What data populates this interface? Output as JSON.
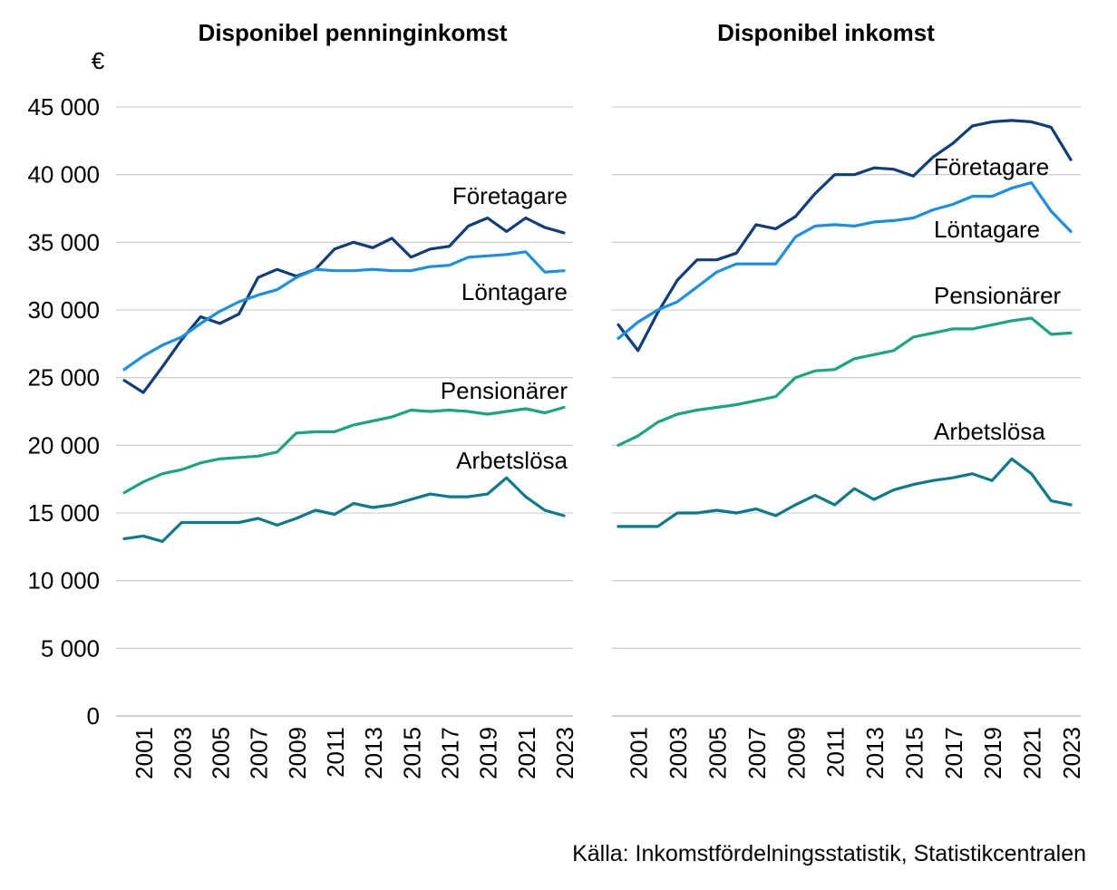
{
  "unit": "€",
  "source": "Källa: Inkomstfördelningsstatistik, Statistikcentralen",
  "chart_data": [
    {
      "type": "line",
      "title": "Disponibel penninginkomst",
      "xlabel": "",
      "ylabel": "",
      "ylim": [
        0,
        45000
      ],
      "yticks": [
        0,
        5000,
        10000,
        15000,
        20000,
        25000,
        30000,
        35000,
        40000,
        45000
      ],
      "ytick_labels": [
        "0",
        "5 000",
        "10 000",
        "15 000",
        "20 000",
        "25 000",
        "30 000",
        "35 000",
        "40 000",
        "45 000"
      ],
      "x": [
        2000,
        2001,
        2002,
        2003,
        2004,
        2005,
        2006,
        2007,
        2008,
        2009,
        2010,
        2011,
        2012,
        2013,
        2014,
        2015,
        2016,
        2017,
        2018,
        2019,
        2020,
        2021,
        2022,
        2023
      ],
      "xtick_labels": [
        "2001",
        "2003",
        "2005",
        "2007",
        "2009",
        "2011",
        "2013",
        "2015",
        "2017",
        "2019",
        "2021",
        "2023"
      ],
      "grid": true,
      "series": [
        {
          "name": "Företagare",
          "color": "#0f3d7a",
          "values": [
            24800,
            23900,
            25800,
            27800,
            29500,
            29000,
            29700,
            32400,
            33000,
            32500,
            33000,
            34500,
            35000,
            34600,
            35300,
            33900,
            34500,
            34700,
            36200,
            36800,
            35800,
            36800,
            36100,
            35700
          ]
        },
        {
          "name": "Löntagare",
          "color": "#1a8fe3",
          "values": [
            25600,
            26600,
            27400,
            28000,
            29000,
            29900,
            30600,
            31100,
            31500,
            32400,
            33000,
            32900,
            32900,
            33000,
            32900,
            32900,
            33200,
            33300,
            33900,
            34000,
            34100,
            34300,
            32800,
            32900
          ]
        },
        {
          "name": "Pensionärer",
          "color": "#1aa57f",
          "values": [
            16500,
            17300,
            17900,
            18200,
            18700,
            19000,
            19100,
            19200,
            19500,
            20900,
            21000,
            21000,
            21500,
            21800,
            22100,
            22600,
            22500,
            22600,
            22500,
            22300,
            22500,
            22700,
            22400,
            22800
          ]
        },
        {
          "name": "Arbetslösa",
          "color": "#0c7a8a",
          "values": [
            13100,
            13300,
            12900,
            14300,
            14300,
            14300,
            14300,
            14600,
            14100,
            14600,
            15200,
            14900,
            15700,
            15400,
            15600,
            16000,
            16400,
            16200,
            16200,
            16400,
            17600,
            16200,
            15200,
            14800
          ]
        }
      ]
    },
    {
      "type": "line",
      "title": "Disponibel inkomst",
      "xlabel": "",
      "ylabel": "",
      "ylim": [
        0,
        45000
      ],
      "yticks": [
        0,
        5000,
        10000,
        15000,
        20000,
        25000,
        30000,
        35000,
        40000,
        45000
      ],
      "x": [
        2000,
        2001,
        2002,
        2003,
        2004,
        2005,
        2006,
        2007,
        2008,
        2009,
        2010,
        2011,
        2012,
        2013,
        2014,
        2015,
        2016,
        2017,
        2018,
        2019,
        2020,
        2021,
        2022,
        2023
      ],
      "xtick_labels": [
        "2001",
        "2003",
        "2005",
        "2007",
        "2009",
        "2011",
        "2013",
        "2015",
        "2017",
        "2019",
        "2021",
        "2023"
      ],
      "grid": true,
      "series": [
        {
          "name": "Företagare",
          "color": "#0f3d7a",
          "values": [
            28900,
            27000,
            29800,
            32200,
            33700,
            33700,
            34200,
            36300,
            36000,
            36900,
            38600,
            40000,
            40000,
            40500,
            40400,
            39900,
            41300,
            42300,
            43600,
            43900,
            44000,
            43900,
            43500,
            41100
          ]
        },
        {
          "name": "Löntagare",
          "color": "#1a8fe3",
          "values": [
            27900,
            29100,
            30000,
            30600,
            31700,
            32800,
            33400,
            33400,
            33400,
            35400,
            36200,
            36300,
            36200,
            36500,
            36600,
            36800,
            37400,
            37800,
            38400,
            38400,
            39000,
            39400,
            37300,
            35800
          ]
        },
        {
          "name": "Pensionärer",
          "color": "#1aa57f",
          "values": [
            20000,
            20700,
            21700,
            22300,
            22600,
            22800,
            23000,
            23300,
            23600,
            25000,
            25500,
            25600,
            26400,
            26700,
            27000,
            28000,
            28300,
            28600,
            28600,
            28900,
            29200,
            29400,
            28200,
            28300
          ]
        },
        {
          "name": "Arbetslösa",
          "color": "#0c7a8a",
          "values": [
            14000,
            14000,
            14000,
            15000,
            15000,
            15200,
            15000,
            15300,
            14800,
            15600,
            16300,
            15600,
            16800,
            16000,
            16700,
            17100,
            17400,
            17600,
            17900,
            17400,
            19000,
            17900,
            15900,
            15600
          ]
        }
      ]
    }
  ]
}
